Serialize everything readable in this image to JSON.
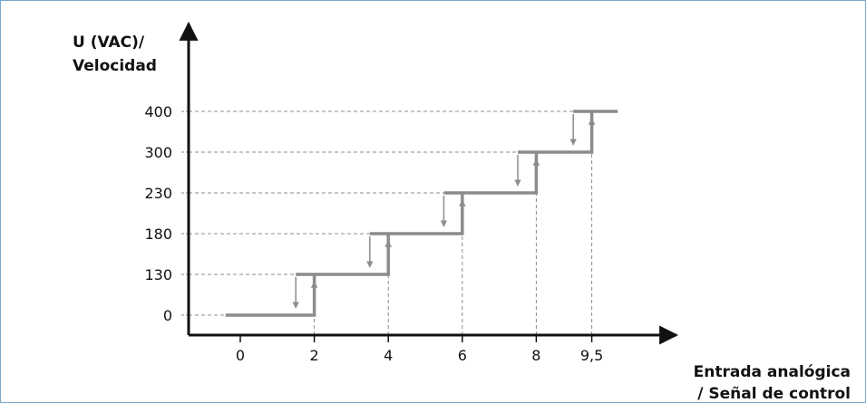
{
  "chart_data": {
    "type": "line",
    "ylabel": [
      "U (VAC)/",
      "Velocidad"
    ],
    "xlabel": [
      "Entrada analógica",
      "/ Señal de control"
    ],
    "x_ticks": [
      {
        "value": 0,
        "label": "0"
      },
      {
        "value": 2,
        "label": "2"
      },
      {
        "value": 4,
        "label": "4"
      },
      {
        "value": 6,
        "label": "6"
      },
      {
        "value": 8,
        "label": "8"
      },
      {
        "value": 9.5,
        "label": "9,5"
      }
    ],
    "y_ticks": [
      "0",
      "130",
      "180",
      "230",
      "300",
      "400"
    ],
    "series": [
      {
        "points": [
          {
            "x": -0.4,
            "y": "0"
          },
          {
            "x": 2,
            "y": "0"
          },
          {
            "x": 2,
            "y": "130"
          },
          {
            "x": 1.5,
            "y": "130"
          },
          {
            "x": 4,
            "y": "130"
          },
          {
            "x": 4,
            "y": "180"
          },
          {
            "x": 3.5,
            "y": "180"
          },
          {
            "x": 6,
            "y": "180"
          },
          {
            "x": 6,
            "y": "230"
          },
          {
            "x": 5.5,
            "y": "230"
          },
          {
            "x": 8,
            "y": "230"
          },
          {
            "x": 8,
            "y": "300"
          },
          {
            "x": 7.5,
            "y": "300"
          },
          {
            "x": 9.5,
            "y": "300"
          },
          {
            "x": 9.5,
            "y": "400"
          },
          {
            "x": 9.0,
            "y": "400"
          },
          {
            "x": 10.2,
            "y": "400"
          }
        ]
      }
    ],
    "hysteresis": [
      {
        "x_down": 1.5,
        "x_up": 2,
        "y_low": "0",
        "y_high": "130"
      },
      {
        "x_down": 3.5,
        "x_up": 4,
        "y_low": "130",
        "y_high": "180"
      },
      {
        "x_down": 5.5,
        "x_up": 6,
        "y_low": "180",
        "y_high": "230"
      },
      {
        "x_down": 7.5,
        "x_up": 8,
        "y_low": "230",
        "y_high": "300"
      },
      {
        "x_down": 9.0,
        "x_up": 9.5,
        "y_low": "300",
        "y_high": "400"
      }
    ],
    "grid": "dashed guide lines to ticks",
    "colors": {
      "step_line": "#8c8c8c",
      "guides": "#8c8c8c",
      "axis": "#111111",
      "frame": "#7ba7c7"
    }
  }
}
